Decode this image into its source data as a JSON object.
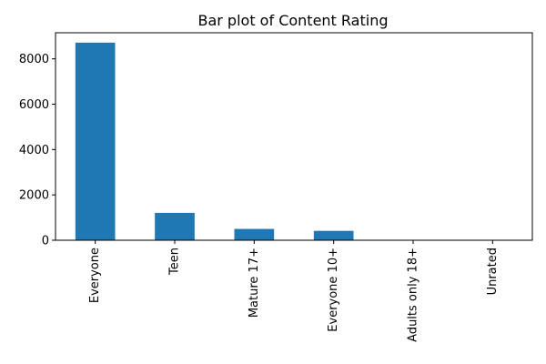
{
  "chart_data": {
    "type": "bar",
    "title": "Bar plot of Content Rating",
    "xlabel": "",
    "ylabel": "",
    "categories": [
      "Everyone",
      "Teen",
      "Mature 17+",
      "Everyone 10+",
      "Adults only 18+",
      "Unrated"
    ],
    "values": [
      8715,
      1208,
      499,
      414,
      3,
      2
    ],
    "ylim": [
      0,
      9150
    ],
    "yticks": [
      0,
      2000,
      4000,
      6000,
      8000
    ],
    "bar_color": "#1f77b4",
    "grid": false,
    "legend": "none"
  }
}
